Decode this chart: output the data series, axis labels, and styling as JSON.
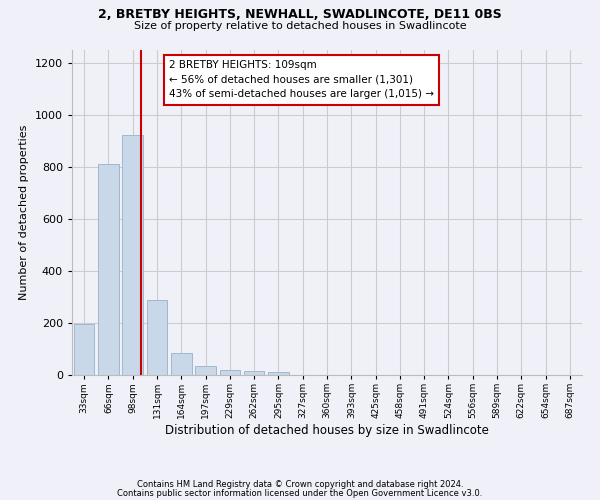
{
  "title1": "2, BRETBY HEIGHTS, NEWHALL, SWADLINCOTE, DE11 0BS",
  "title2": "Size of property relative to detached houses in Swadlincote",
  "xlabel": "Distribution of detached houses by size in Swadlincote",
  "ylabel": "Number of detached properties",
  "footnote1": "Contains HM Land Registry data © Crown copyright and database right 2024.",
  "footnote2": "Contains public sector information licensed under the Open Government Licence v3.0.",
  "bin_labels": [
    "33sqm",
    "66sqm",
    "98sqm",
    "131sqm",
    "164sqm",
    "197sqm",
    "229sqm",
    "262sqm",
    "295sqm",
    "327sqm",
    "360sqm",
    "393sqm",
    "425sqm",
    "458sqm",
    "491sqm",
    "524sqm",
    "556sqm",
    "589sqm",
    "622sqm",
    "654sqm",
    "687sqm"
  ],
  "bar_values": [
    195,
    810,
    925,
    290,
    85,
    35,
    20,
    15,
    10,
    0,
    0,
    0,
    0,
    0,
    0,
    0,
    0,
    0,
    0,
    0,
    0
  ],
  "bar_color": "#c8d8e8",
  "bar_edge_color": "#a0b8cc",
  "grid_color": "#cccccc",
  "vline_x": 2.33,
  "vline_color": "#cc0000",
  "annotation_text": "2 BRETBY HEIGHTS: 109sqm\n← 56% of detached houses are smaller (1,301)\n43% of semi-detached houses are larger (1,015) →",
  "annotation_box_color": "#cc0000",
  "ylim": [
    0,
    1250
  ],
  "yticks": [
    0,
    200,
    400,
    600,
    800,
    1000,
    1200
  ],
  "background_color": "#f0f0f8"
}
